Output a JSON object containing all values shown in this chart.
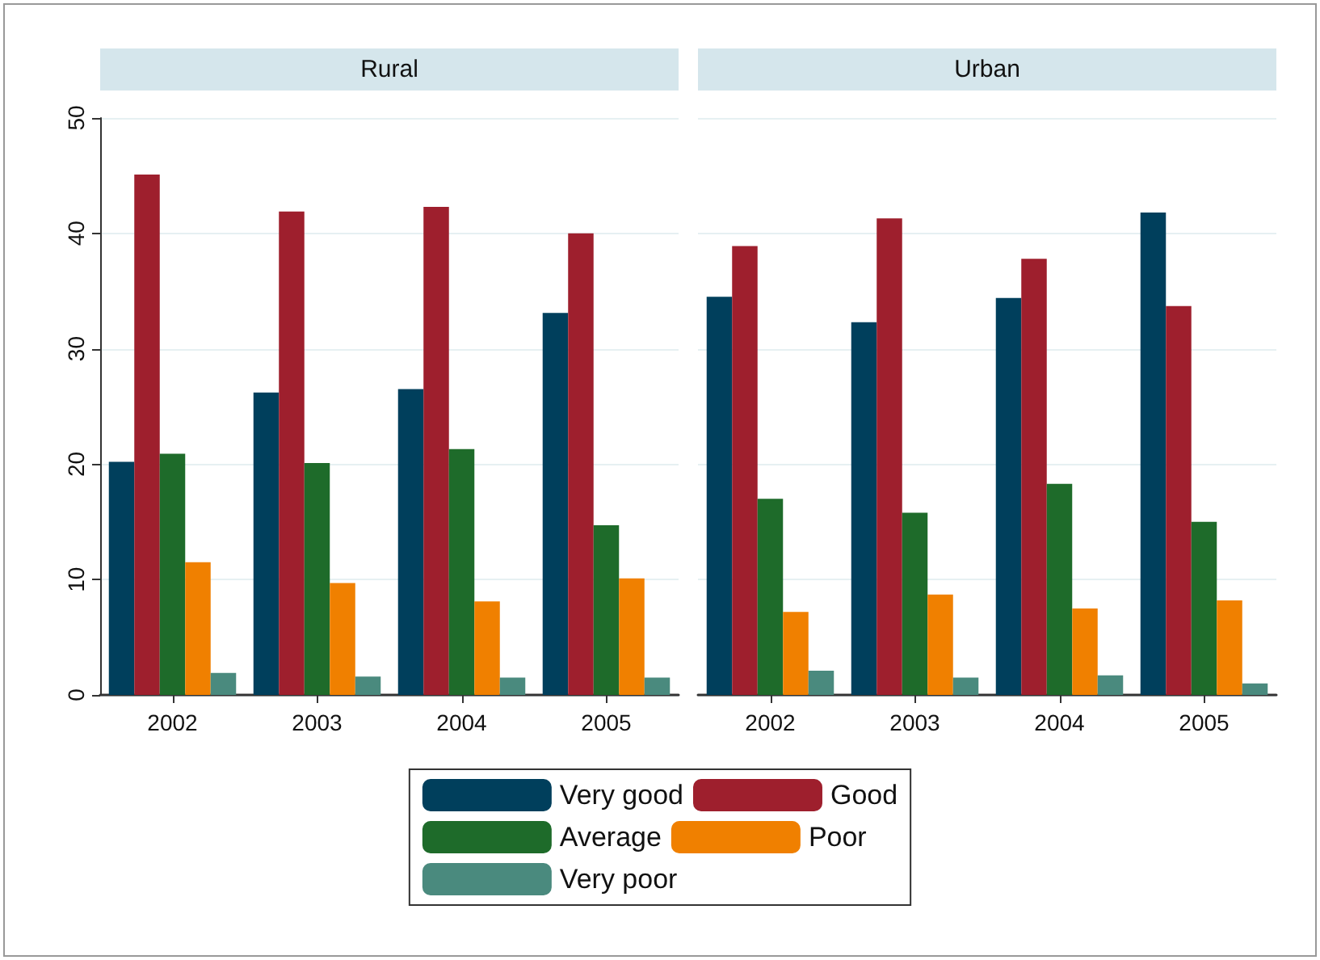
{
  "chart_data": [
    {
      "type": "bar",
      "title": "Rural",
      "categories": [
        "2002",
        "2003",
        "2004",
        "2005"
      ],
      "series": [
        {
          "name": "Very good",
          "color": "#003f5c",
          "values": [
            20.2,
            26.2,
            26.5,
            33.1
          ]
        },
        {
          "name": "Good",
          "color": "#9e1f2d",
          "values": [
            45.1,
            41.9,
            42.3,
            40.0
          ]
        },
        {
          "name": "Average",
          "color": "#1e6b2a",
          "values": [
            20.9,
            20.1,
            21.3,
            14.7
          ]
        },
        {
          "name": "Poor",
          "color": "#f08000",
          "values": [
            11.5,
            9.7,
            8.1,
            10.1
          ]
        },
        {
          "name": "Very poor",
          "color": "#4a8a7e",
          "values": [
            1.9,
            1.6,
            1.5,
            1.5
          ]
        }
      ],
      "ylim": [
        0,
        50
      ],
      "yticks": [
        0,
        10,
        20,
        30,
        40,
        50
      ],
      "grid": "y",
      "legend": "bottom"
    },
    {
      "type": "bar",
      "title": "Urban",
      "categories": [
        "2002",
        "2003",
        "2004",
        "2005"
      ],
      "series": [
        {
          "color": "#003f5c",
          "values": [
            34.5,
            32.3,
            34.4,
            41.8
          ]
        },
        {
          "color": "#9e1f2d",
          "values": [
            38.9,
            41.3,
            37.8,
            33.7
          ]
        },
        {
          "color": "#1e6b2a",
          "values": [
            17.0,
            15.8,
            18.3,
            15.0
          ]
        },
        {
          "color": "#f08000",
          "values": [
            7.2,
            8.7,
            7.5,
            8.2
          ]
        },
        {
          "color": "#4a8a7e",
          "values": [
            2.1,
            1.5,
            1.7,
            1.0
          ]
        }
      ],
      "ylim": [
        0,
        50
      ],
      "yticks": [
        0,
        10,
        20,
        30,
        40,
        50
      ],
      "grid": "y",
      "tick_labels": "x"
    }
  ]
}
